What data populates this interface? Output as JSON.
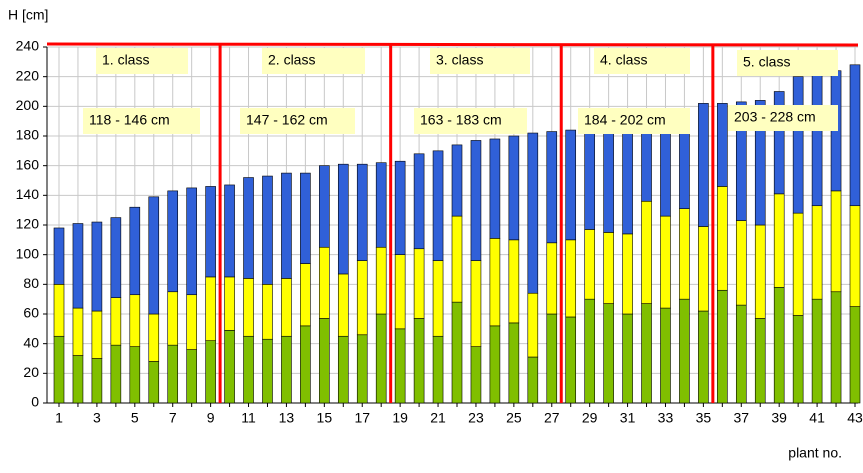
{
  "chart_data": {
    "type": "stacked-bar",
    "y_label": "H [cm]",
    "x_label": "plant no.",
    "categories": [
      1,
      null,
      3,
      null,
      5,
      null,
      7,
      null,
      9,
      null,
      11,
      null,
      13,
      null,
      15,
      null,
      17,
      null,
      19,
      null,
      21,
      null,
      23,
      null,
      25,
      null,
      27,
      null,
      29,
      null,
      31,
      null,
      33,
      null,
      35,
      null,
      37,
      null,
      39,
      null,
      41,
      null,
      43
    ],
    "series": [
      {
        "color": "#80bf00",
        "values": [
          45,
          32,
          30,
          39,
          38,
          28,
          39,
          36,
          42,
          49,
          45,
          43,
          45,
          52,
          57,
          45,
          46,
          60,
          50,
          57,
          45,
          68,
          38,
          52,
          54,
          31,
          60,
          58,
          70,
          67,
          60,
          67,
          64,
          70,
          62,
          76,
          66,
          57,
          78,
          59,
          70,
          75,
          65
        ]
      },
      {
        "color": "#ffff00",
        "values": [
          35,
          32,
          32,
          32,
          35,
          32,
          36,
          37,
          43,
          36,
          39,
          37,
          39,
          42,
          48,
          42,
          50,
          45,
          50,
          47,
          51,
          58,
          58,
          59,
          56,
          43,
          48,
          52,
          47,
          48,
          54,
          69,
          62,
          61,
          57,
          70,
          57,
          63,
          63,
          69,
          63,
          68,
          68
        ]
      },
      {
        "color": "#3060d8",
        "values": [
          38,
          57,
          60,
          54,
          59,
          79,
          68,
          72,
          61,
          62,
          68,
          73,
          71,
          61,
          55,
          74,
          65,
          57,
          63,
          64,
          74,
          48,
          81,
          67,
          70,
          108,
          75,
          74,
          68,
          72,
          75,
          54,
          66,
          64,
          83,
          56,
          80,
          84,
          69,
          92,
          89,
          81,
          95
        ]
      }
    ],
    "ylim": [
      0,
      240
    ],
    "yticks": [
      0,
      20,
      40,
      60,
      80,
      100,
      120,
      140,
      160,
      180,
      200,
      220,
      240
    ],
    "grid": true,
    "annotations": [
      "1. class",
      "2. class",
      "3. class",
      "4. class",
      "5. class",
      "118 - 146 cm",
      "147 - 162 cm",
      "163 - 183 cm",
      "184 - 202 cm",
      "203 - 228 cm"
    ]
  }
}
